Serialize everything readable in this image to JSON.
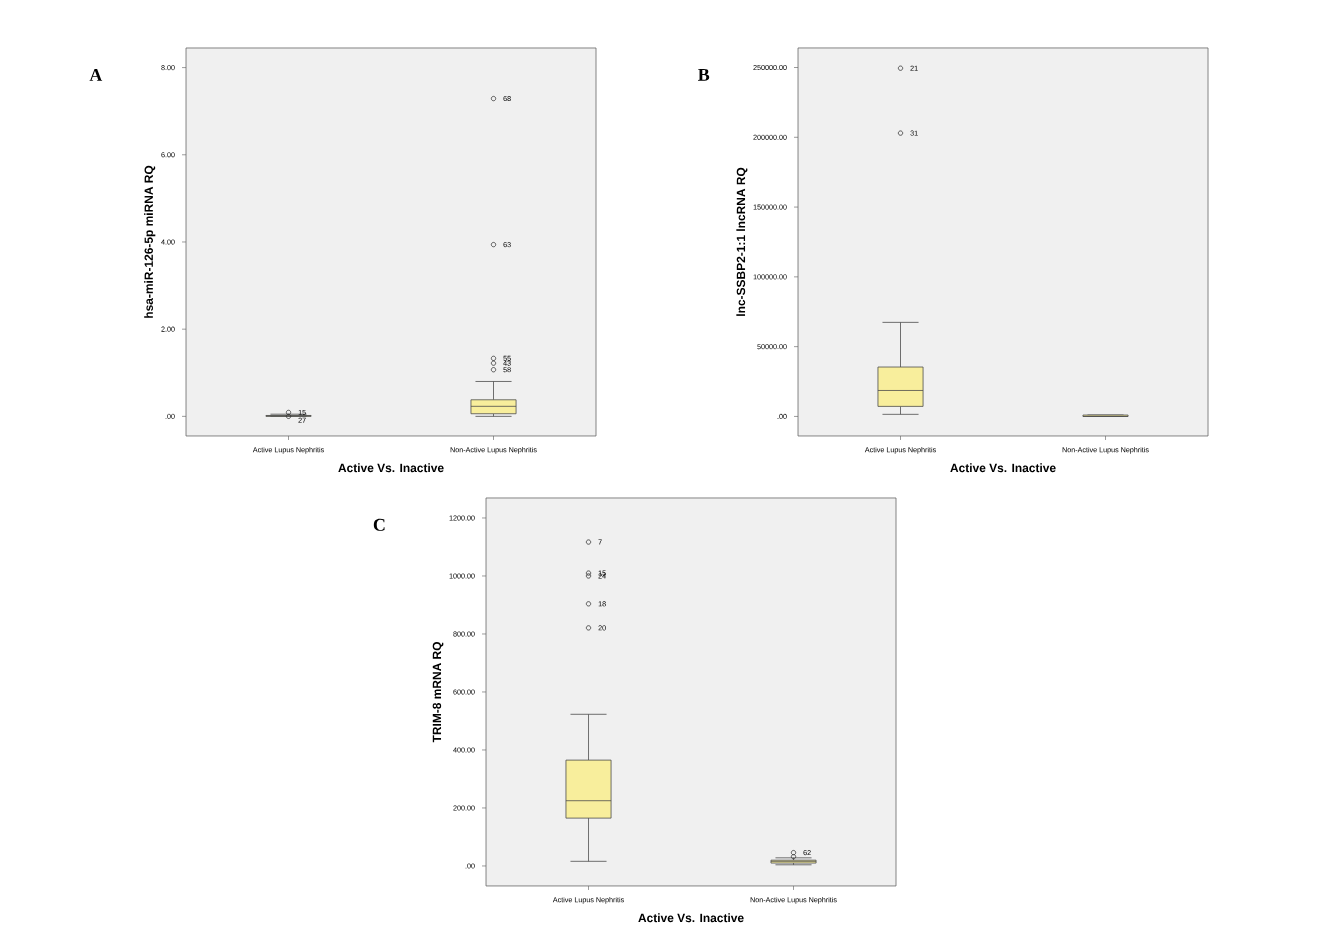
{
  "chart_data": [
    {
      "type": "box",
      "title": "A",
      "xlabel": "Active Vs. Inactive",
      "ylabel": "hsa-miR-126-5p miRNA RQ",
      "categories": [
        "Active Lupus Nephritis",
        "Non-Active Lupus Nephritis"
      ],
      "ylim": [
        -0.45,
        8.45
      ],
      "yticks": [
        {
          "value": 0,
          "label": ".00"
        },
        {
          "value": 2,
          "label": "2.00"
        },
        {
          "value": 4,
          "label": "4.00"
        },
        {
          "value": 6,
          "label": "6.00"
        },
        {
          "value": 8,
          "label": "8.00"
        }
      ],
      "marker": "circle",
      "series": [
        {
          "color": "#f8ee9c",
          "boxes": [
            {
              "low": 0,
              "q1": 0,
              "median": 0.01,
              "q3": 0.02,
              "high": 0.05,
              "outliers": [
                0.09,
                0
              ]
            },
            {
              "low": 0,
              "q1": 0.06,
              "median": 0.23,
              "q3": 0.38,
              "high": 0.8,
              "outliers": [
                1.33,
                1.22,
                1.07,
                3.94,
                7.29
              ]
            }
          ]
        }
      ],
      "annotations": [
        "15",
        "27",
        "55",
        "43",
        "58",
        "63",
        "68"
      ]
    },
    {
      "type": "box",
      "title": "B",
      "xlabel": "Active Vs. Inactive",
      "ylabel": "lnc-SSBP2-1:1 lncRNA RQ",
      "categories": [
        "Active Lupus Nephritis",
        "Non-Active Lupus Nephritis"
      ],
      "ylim": [
        -14000,
        264000
      ],
      "yticks": [
        {
          "value": 0,
          "label": ".00"
        },
        {
          "value": 50000,
          "label": "50000.00"
        },
        {
          "value": 100000,
          "label": "100000.00"
        },
        {
          "value": 150000,
          "label": "150000.00"
        },
        {
          "value": 200000,
          "label": "200000.00"
        },
        {
          "value": 250000,
          "label": "250000.00"
        }
      ],
      "marker": "circle",
      "series": [
        {
          "color": "#f8ee9c",
          "boxes": [
            {
              "low": 1500,
              "q1": 7200,
              "median": 18600,
              "q3": 35400,
              "high": 67400,
              "outliers": [
                249500,
                203000
              ]
            },
            {
              "low": 0,
              "q1": 0,
              "median": 0,
              "q3": 1000,
              "high": 1000
            }
          ]
        }
      ],
      "annotations": [
        "21",
        "31"
      ]
    },
    {
      "type": "box",
      "title": "C",
      "xlabel": "Active Vs. Inactive",
      "ylabel": "TRIM-8 mRNA RQ",
      "categories": [
        "Active Lupus Nephritis",
        "Non-Active Lupus Nephritis"
      ],
      "ylim": [
        -69,
        1269
      ],
      "yticks": [
        {
          "value": 0,
          "label": ".00"
        },
        {
          "value": 200,
          "label": "200.00"
        },
        {
          "value": 400,
          "label": "400.00"
        },
        {
          "value": 600,
          "label": "600.00"
        },
        {
          "value": 800,
          "label": "800.00"
        },
        {
          "value": 1000,
          "label": "1000.00"
        },
        {
          "value": 1200,
          "label": "1200.00"
        }
      ],
      "marker": "circle",
      "series": [
        {
          "color": "#f8ee9c",
          "boxes": [
            {
              "low": 16,
              "q1": 165,
              "median": 225,
              "q3": 365,
              "high": 523,
              "outliers": [
                1117,
                1010,
                1000,
                904,
                821
              ]
            },
            {
              "low": 4,
              "q1": 10,
              "median": 16,
              "q3": 20,
              "high": 28,
              "outliers": [
                46,
                32
              ]
            }
          ]
        }
      ],
      "annotations": [
        "7",
        "15",
        "24",
        "18",
        "20",
        "62"
      ]
    }
  ]
}
